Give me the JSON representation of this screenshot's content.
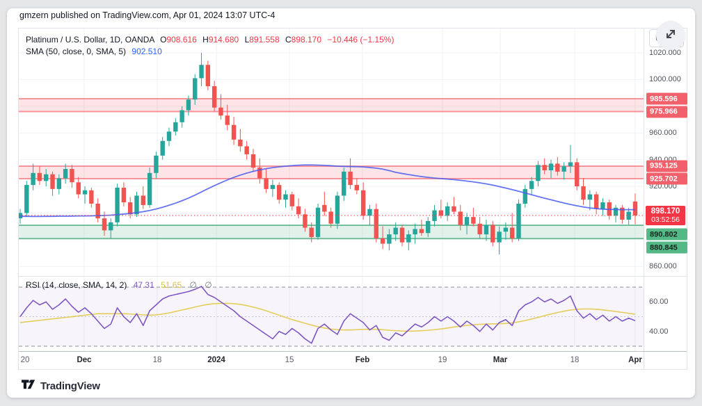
{
  "header": {
    "text": "gmzern published on TradingView.com, Apr 01, 2024 13:07 UTC-4"
  },
  "toolbar": {
    "currency": "USD",
    "expand_icon": "expand-arrows"
  },
  "legend": {
    "title": "Platinum / U.S. Dollar, 1D, OANDA",
    "o_label": "O",
    "o_value": "908.616",
    "h_label": "H",
    "h_value": "914.680",
    "l_label": "L",
    "l_value": "891.558",
    "c_label": "C",
    "c_value": "898.170",
    "change": "−10.446 (−1.15%)",
    "sma_title": "SMA (50, close, 0, SMA, 5)",
    "sma_value": "902.510"
  },
  "rsi_legend": {
    "title": "RSI (14, close, SMA, 14, 2)",
    "value": "47.31",
    "ma_value": "51.65",
    "band1": "∅",
    "band2": "∅"
  },
  "footer": {
    "brand": "TradingView"
  },
  "price_axis": {
    "plain_labels": [
      {
        "text": "1020.000",
        "price": 1020
      },
      {
        "text": "1000.000",
        "price": 1000
      },
      {
        "text": "960.000",
        "price": 960
      },
      {
        "text": "940.000",
        "price": 940
      },
      {
        "text": "920.000",
        "price": 920
      },
      {
        "text": "860.000",
        "price": 860
      }
    ],
    "zone_labels": [
      {
        "text": "985.596",
        "price": 985.596,
        "kind": "res"
      },
      {
        "text": "975.966",
        "price": 975.966,
        "kind": "res"
      },
      {
        "text": "935.125",
        "price": 935.125,
        "kind": "res"
      },
      {
        "text": "925.702",
        "price": 925.702,
        "kind": "res"
      },
      {
        "text": "890.802",
        "price": 890.802,
        "kind": "sup"
      },
      {
        "text": "880.845",
        "price": 880.845,
        "kind": "sup"
      }
    ],
    "last": {
      "text": "898.170",
      "countdown": "03:52:56",
      "price": 898.17
    }
  },
  "rsi_axis": {
    "labels": [
      {
        "text": "60.00",
        "value": 60
      },
      {
        "text": "40.00",
        "value": 40
      }
    ]
  },
  "time_axis": {
    "labels": [
      {
        "text": "20",
        "x": 9,
        "month": false
      },
      {
        "text": "Dec",
        "x": 94,
        "month": true
      },
      {
        "text": "18",
        "x": 199,
        "month": false
      },
      {
        "text": "2024",
        "x": 284,
        "month": true
      },
      {
        "text": "15",
        "x": 389,
        "month": false
      },
      {
        "text": "Feb",
        "x": 494,
        "month": true
      },
      {
        "text": "19",
        "x": 609,
        "month": false
      },
      {
        "text": "Mar",
        "x": 692,
        "month": true
      },
      {
        "text": "18",
        "x": 799,
        "month": false
      },
      {
        "text": "Apr",
        "x": 886,
        "month": true
      }
    ]
  },
  "chart_data": {
    "type": "candlestick",
    "title": "Platinum / U.S. Dollar, 1D, OANDA",
    "symbol": "XPT/USD",
    "timeframe": "1D",
    "last_bar": {
      "open": 908.616,
      "high": 914.68,
      "low": 891.558,
      "close": 898.17,
      "change": -10.446,
      "change_pct": -1.15
    },
    "sma50_last": 902.51,
    "price_scale": {
      "min": 851,
      "max": 1038,
      "grid_step": 20,
      "gridlines": [
        1020,
        1000,
        980,
        960,
        940,
        920,
        900,
        880,
        860
      ]
    },
    "x_ticks": [
      "20",
      "Dec",
      "18",
      "2024",
      "15",
      "Feb",
      "19",
      "Mar",
      "18",
      "Apr"
    ],
    "zones": [
      {
        "kind": "res",
        "from": 975.966,
        "to": 985.596
      },
      {
        "kind": "res",
        "from": 925.702,
        "to": 935.125
      },
      {
        "kind": "sup",
        "from": 880.845,
        "to": 890.802
      }
    ],
    "vgrid_x": [
      94,
      199,
      284,
      389,
      494,
      609,
      692,
      799,
      886
    ],
    "candles": [
      [
        896,
        903,
        892,
        900
      ],
      [
        900,
        924,
        897,
        921
      ],
      [
        921,
        937,
        917,
        930
      ],
      [
        930,
        935,
        921,
        924
      ],
      [
        924,
        933,
        920,
        929
      ],
      [
        929,
        931,
        913,
        918
      ],
      [
        918,
        929,
        914,
        926
      ],
      [
        926,
        937,
        922,
        933
      ],
      [
        933,
        936,
        919,
        923
      ],
      [
        923,
        927,
        911,
        914
      ],
      [
        914,
        920,
        907,
        917
      ],
      [
        917,
        919,
        904,
        907
      ],
      [
        907,
        911,
        893,
        896
      ],
      [
        896,
        901,
        883,
        887
      ],
      [
        887,
        896,
        881,
        893
      ],
      [
        893,
        922,
        890,
        919
      ],
      [
        919,
        923,
        905,
        908
      ],
      [
        908,
        912,
        896,
        899
      ],
      [
        899,
        916,
        897,
        913
      ],
      [
        913,
        920,
        903,
        906
      ],
      [
        906,
        934,
        904,
        930
      ],
      [
        930,
        946,
        926,
        943
      ],
      [
        943,
        957,
        940,
        954
      ],
      [
        954,
        964,
        950,
        961
      ],
      [
        961,
        971,
        958,
        968
      ],
      [
        968,
        980,
        964,
        977
      ],
      [
        977,
        988,
        973,
        985
      ],
      [
        985,
        1004,
        981,
        1001
      ],
      [
        1001,
        1020,
        995,
        1011
      ],
      [
        1011,
        1014,
        992,
        995
      ],
      [
        995,
        999,
        976,
        979
      ],
      [
        979,
        989,
        970,
        973
      ],
      [
        973,
        981,
        962,
        966
      ],
      [
        966,
        972,
        951,
        955
      ],
      [
        955,
        963,
        946,
        950
      ],
      [
        950,
        954,
        940,
        944
      ],
      [
        944,
        948,
        931,
        934
      ],
      [
        934,
        941,
        922,
        926
      ],
      [
        926,
        933,
        915,
        918
      ],
      [
        918,
        925,
        912,
        921
      ],
      [
        921,
        923,
        907,
        910
      ],
      [
        910,
        917,
        904,
        914
      ],
      [
        914,
        916,
        902,
        905
      ],
      [
        905,
        911,
        896,
        899
      ],
      [
        899,
        903,
        886,
        889
      ],
      [
        889,
        893,
        878,
        882
      ],
      [
        882,
        907,
        880,
        904
      ],
      [
        906,
        916,
        898,
        901
      ],
      [
        901,
        904,
        889,
        892
      ],
      [
        892,
        916,
        888,
        913
      ],
      [
        913,
        934,
        909,
        931
      ],
      [
        931,
        941,
        918,
        921
      ],
      [
        921,
        926,
        914,
        917
      ],
      [
        917,
        923,
        895,
        898
      ],
      [
        898,
        906,
        891,
        903
      ],
      [
        903,
        907,
        878,
        881
      ],
      [
        881,
        890,
        873,
        877
      ],
      [
        877,
        888,
        872,
        884
      ],
      [
        884,
        893,
        879,
        889
      ],
      [
        889,
        891,
        875,
        878
      ],
      [
        878,
        887,
        872,
        884
      ],
      [
        884,
        892,
        877,
        888
      ],
      [
        888,
        895,
        883,
        885
      ],
      [
        885,
        897,
        882,
        894
      ],
      [
        894,
        906,
        890,
        902
      ],
      [
        902,
        910,
        896,
        898
      ],
      [
        898,
        908,
        894,
        905
      ],
      [
        905,
        912,
        899,
        901
      ],
      [
        901,
        906,
        887,
        891
      ],
      [
        891,
        900,
        884,
        897
      ],
      [
        897,
        904,
        890,
        892
      ],
      [
        892,
        897,
        881,
        884
      ],
      [
        884,
        895,
        879,
        891
      ],
      [
        891,
        894,
        875,
        878
      ],
      [
        878,
        890,
        869,
        886
      ],
      [
        886,
        893,
        880,
        889
      ],
      [
        889,
        900,
        878,
        881
      ],
      [
        881,
        910,
        879,
        907
      ],
      [
        907,
        921,
        904,
        918
      ],
      [
        918,
        927,
        914,
        924
      ],
      [
        924,
        939,
        920,
        936
      ],
      [
        936,
        941,
        929,
        932
      ],
      [
        932,
        940,
        926,
        937
      ],
      [
        937,
        942,
        928,
        931
      ],
      [
        931,
        938,
        925,
        935
      ],
      [
        935,
        951,
        930,
        938
      ],
      [
        938,
        941,
        917,
        920
      ],
      [
        920,
        926,
        906,
        910
      ],
      [
        910,
        917,
        902,
        914
      ],
      [
        914,
        916,
        899,
        903
      ],
      [
        903,
        911,
        898,
        908
      ],
      [
        908,
        910,
        895,
        898
      ],
      [
        898,
        906,
        893,
        904
      ],
      [
        904,
        906,
        892,
        895
      ],
      [
        895,
        904,
        891,
        901
      ],
      [
        908.62,
        914.68,
        891.56,
        898.17
      ]
    ],
    "sma50": [
      897.5,
      897.5,
      897.4,
      897.4,
      897.5,
      897.5,
      897.6,
      897.6,
      897.7,
      897.8,
      897.8,
      897.9,
      898.0,
      898.2,
      898.4,
      898.8,
      899.2,
      899.7,
      900.3,
      901.0,
      901.9,
      903.0,
      904.3,
      905.8,
      907.4,
      909.2,
      911.2,
      913.4,
      915.8,
      918.2,
      920.5,
      922.7,
      924.8,
      926.7,
      928.4,
      929.9,
      931.2,
      932.3,
      933.2,
      934.0,
      934.6,
      935.1,
      935.5,
      935.8,
      936.0,
      936.0,
      935.9,
      935.7,
      935.4,
      935.1,
      934.9,
      934.8,
      934.7,
      934.5,
      934.1,
      933.6,
      932.9,
      931.8,
      930.5,
      929.6,
      928.8,
      928.0,
      927.3,
      926.7,
      926.2,
      925.8,
      925.4,
      925.0,
      924.5,
      923.9,
      923.3,
      922.6,
      921.8,
      920.9,
      919.8,
      918.7,
      917.5,
      916.3,
      915.0,
      913.7,
      912.4,
      911.1,
      909.9,
      908.7,
      907.5,
      906.4,
      905.4,
      904.5,
      903.8,
      903.3,
      902.9,
      902.7,
      902.6,
      902.5,
      902.5,
      902.5
    ],
    "rsi": {
      "upper_band": 70,
      "middle_band": 50,
      "lower_band": 30,
      "last": 47.31,
      "ma_last": 51.65,
      "values": [
        50,
        56,
        61,
        58,
        60,
        55,
        58,
        62,
        57,
        53,
        56,
        52,
        47,
        42,
        45,
        56,
        50,
        46,
        52,
        44,
        54,
        58,
        62,
        64,
        65,
        66,
        67,
        68.5,
        70.5,
        65,
        63,
        60,
        57,
        54,
        50,
        47,
        44,
        41,
        38,
        35,
        40,
        38,
        42,
        39,
        35,
        32,
        42,
        45,
        41,
        38,
        47,
        52,
        49,
        46,
        41,
        44,
        36,
        34,
        39,
        37,
        41,
        45,
        43,
        46,
        50,
        47,
        50,
        47,
        43,
        47,
        44,
        40,
        45,
        41,
        46,
        48,
        44,
        54,
        58,
        60,
        63,
        60,
        62,
        59,
        61,
        64,
        54,
        49,
        52,
        48,
        51,
        47,
        50,
        47,
        49,
        47.3
      ],
      "ma": [
        46,
        46.5,
        47,
        47.5,
        48,
        48.5,
        49,
        49.5,
        50,
        50.5,
        51,
        51.5,
        52,
        52,
        52,
        52,
        52,
        51.8,
        51.5,
        51.2,
        51,
        51.2,
        51.8,
        52.5,
        53.5,
        54.5,
        55.5,
        56.5,
        57.5,
        58.3,
        58.8,
        59,
        59,
        58.8,
        58.3,
        57.5,
        56.5,
        55.3,
        54,
        52.5,
        51,
        49.5,
        48,
        46.8,
        45.5,
        44.3,
        43.2,
        42.3,
        41.6,
        41.2,
        41,
        41,
        41.2,
        41.4,
        41.5,
        41.4,
        41.2,
        40.8,
        40.5,
        40.3,
        40.2,
        40.3,
        40.5,
        40.8,
        41.2,
        41.7,
        42.3,
        43,
        43.6,
        44.1,
        44.5,
        44.8,
        45,
        45.1,
        45.2,
        45.4,
        45.8,
        46.5,
        47.4,
        48.4,
        49.5,
        50.7,
        51.8,
        52.8,
        53.7,
        54.5,
        55,
        55.2,
        55.2,
        55,
        54.6,
        54.1,
        53.5,
        52.9,
        52.3,
        51.65
      ]
    },
    "colors": {
      "up": "#26a69a",
      "down": "#f05350",
      "sma": "#4a5cf0",
      "rsi_line": "#7e57c2",
      "rsi_ma": "#e2cb52",
      "rsi_bg": "rgba(126,87,194,0.06)",
      "last_line": "#f23645",
      "zone_res_fill": "rgba(242,54,69,0.13)",
      "zone_res_border": "rgba(242,54,69,0.5)",
      "zone_sup_fill": "rgba(51,160,111,0.14)",
      "zone_sup_border": "rgba(51,160,111,0.65)",
      "res_label_bg": "#f1606b",
      "sup_label_bg": "#55b987",
      "last_label_bg": "#f23645",
      "grid_h": "#f0f2f6",
      "grid_v": "#edf0f5"
    }
  }
}
